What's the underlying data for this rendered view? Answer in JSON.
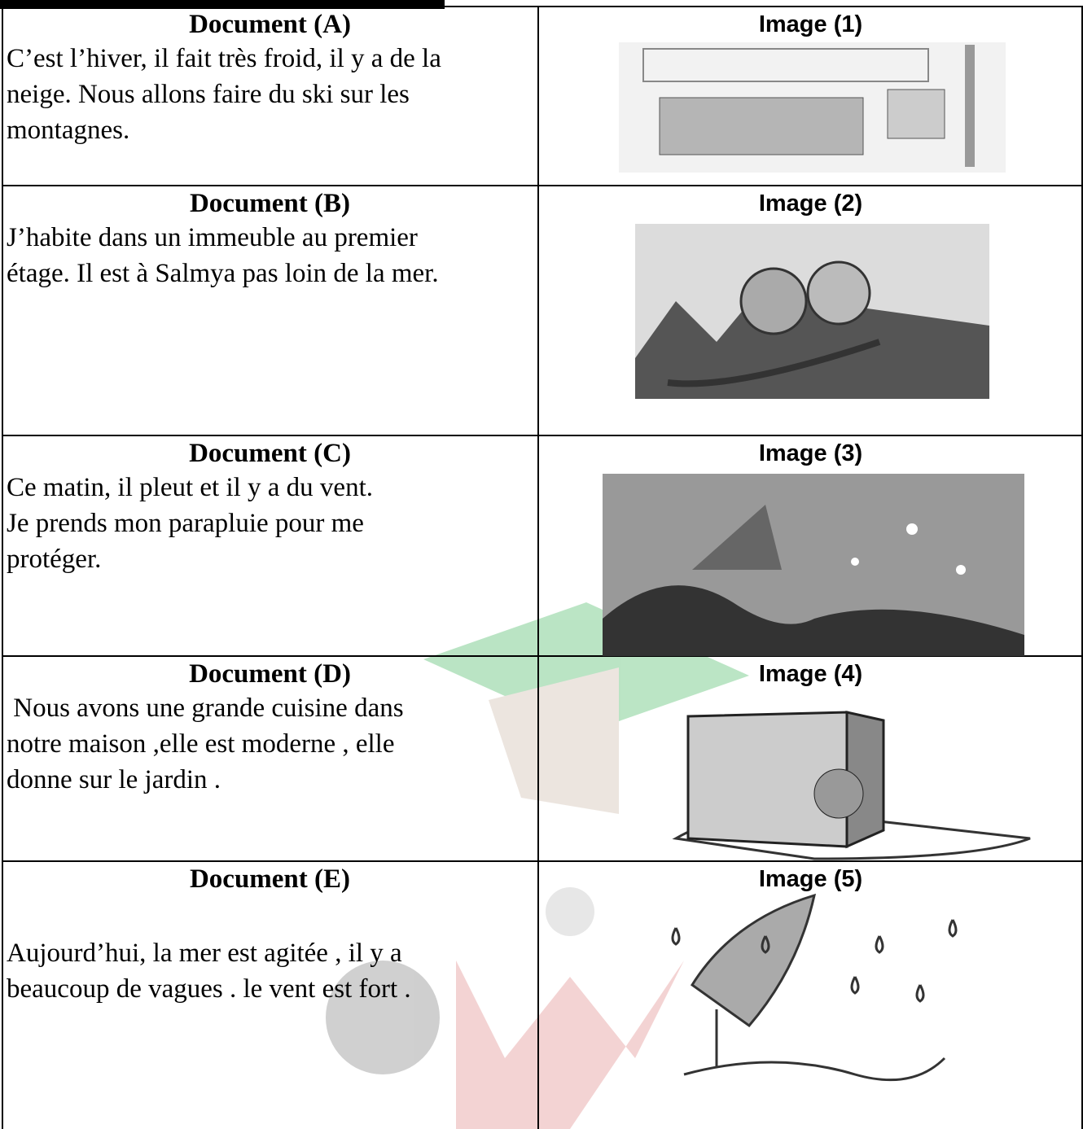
{
  "rows": [
    {
      "document": {
        "title": "Document (A)",
        "lines": [
          "C’est l’hiver, il fait très froid, il y a de la",
          "neige. Nous allons faire du ski sur les",
          "montagnes."
        ]
      },
      "image": {
        "label": "Image (1)"
      }
    },
    {
      "document": {
        "title": "Document (B)",
        "lines": [
          "J’habite dans un immeuble au premier",
          "étage. Il est à Salmya pas loin de la mer."
        ]
      },
      "image": {
        "label": "Image (2)"
      }
    },
    {
      "document": {
        "title": "Document (C)",
        "lines": [
          "Ce matin, il pleut et il y a du vent.",
          "Je prends mon parapluie pour me",
          "protéger."
        ]
      },
      "image": {
        "label": "Image (3)"
      }
    },
    {
      "document": {
        "title": "Document (D)",
        "lines": [
          " Nous avons une grande cuisine dans",
          "notre maison ,elle est moderne , elle",
          "donne sur le jardin ."
        ]
      },
      "image": {
        "label": "Image (4)"
      }
    },
    {
      "document": {
        "title": "Document (E)",
        "lines": [
          "Aujourd’hui, la mer est agitée , il y a",
          "beaucoup de vagues . le vent est fort ."
        ]
      },
      "image": {
        "label": "Image (5)"
      }
    }
  ]
}
